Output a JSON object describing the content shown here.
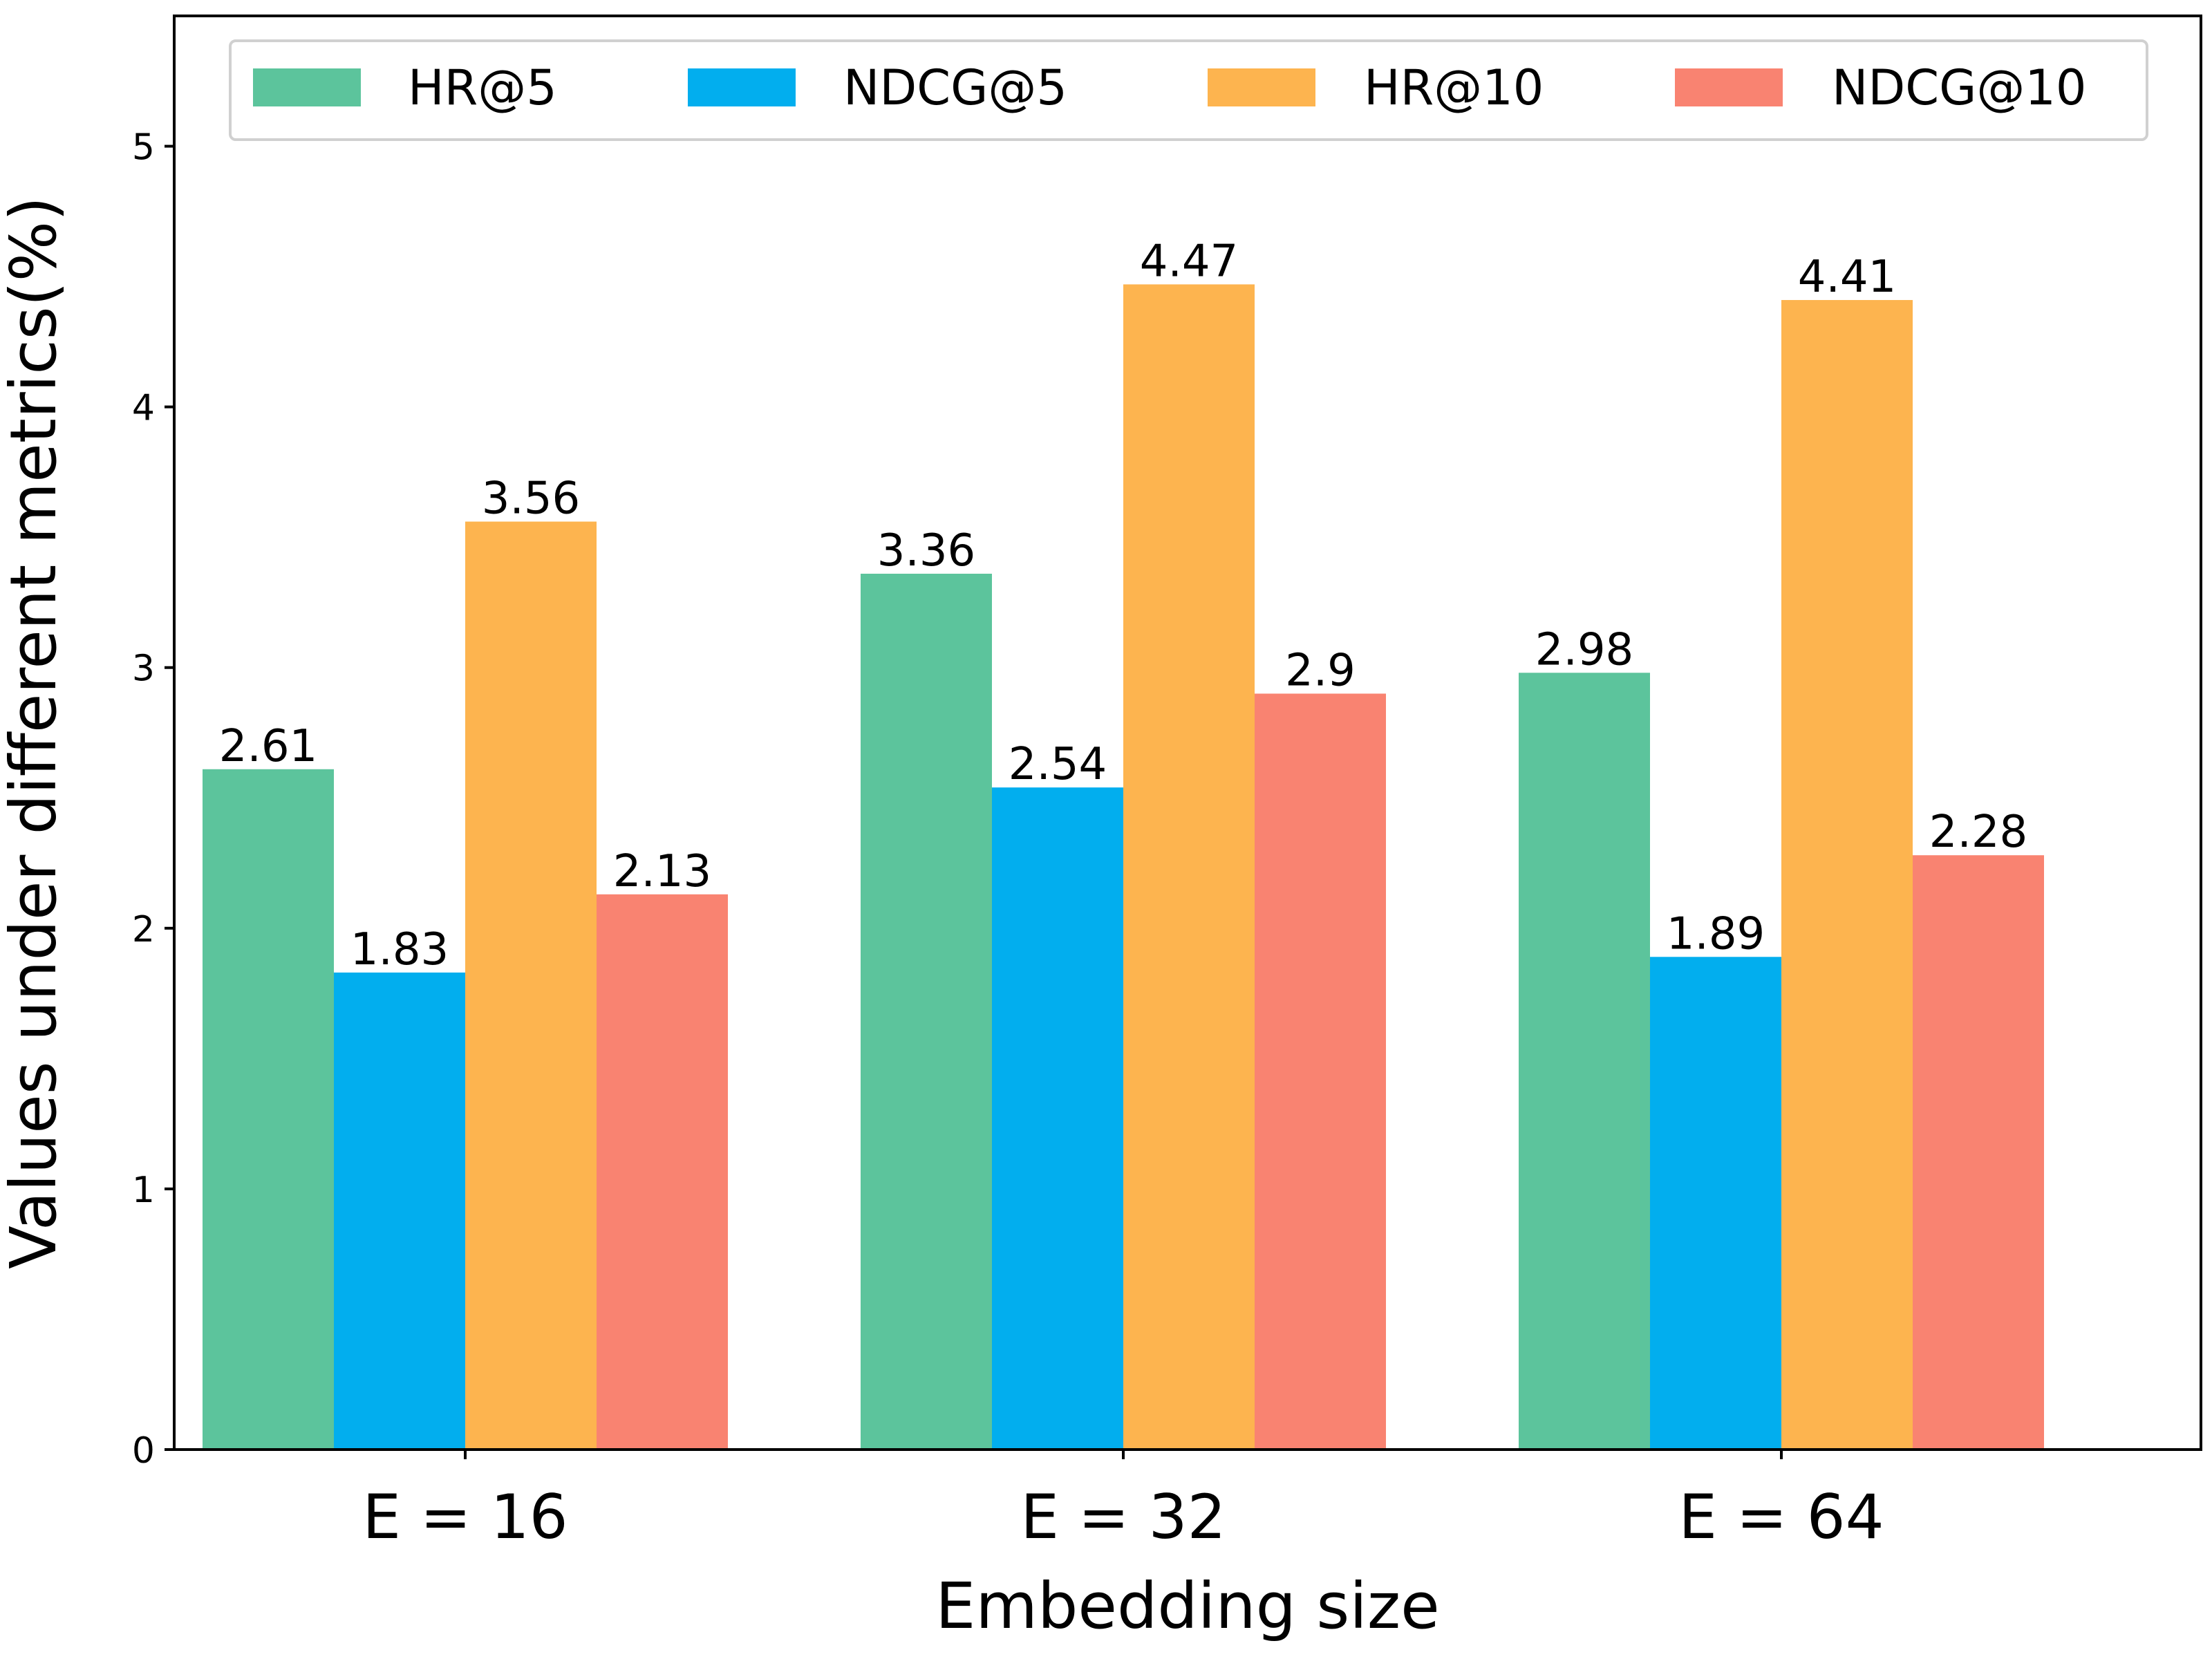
{
  "chart_data": {
    "type": "bar",
    "title": "",
    "xlabel": "Embedding size",
    "ylabel": "Values under different metrics(%)",
    "categories": [
      "E = 16",
      "E = 32",
      "E = 64"
    ],
    "ylim": [
      0,
      5.5
    ],
    "yticks": [
      0,
      1,
      2,
      3,
      4,
      5
    ],
    "grid": false,
    "legend_position": "top",
    "series": [
      {
        "name": "HR@5",
        "color": "#5cc49c",
        "values": [
          2.61,
          3.36,
          2.98
        ],
        "labels": [
          "2.61",
          "3.36",
          "2.98"
        ]
      },
      {
        "name": "NDCG@5",
        "color": "#02aeee",
        "values": [
          1.83,
          2.54,
          1.89
        ],
        "labels": [
          "1.83",
          "2.54",
          "1.89"
        ]
      },
      {
        "name": "HR@10",
        "color": "#fdb44f",
        "values": [
          3.56,
          4.47,
          4.41
        ],
        "labels": [
          "3.56",
          "4.47",
          "4.41"
        ]
      },
      {
        "name": "NDCG@10",
        "color": "#f98371",
        "values": [
          2.13,
          2.9,
          2.28
        ],
        "labels": [
          "2.13",
          "2.9",
          "2.28"
        ]
      }
    ]
  }
}
